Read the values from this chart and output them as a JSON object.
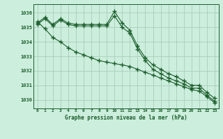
{
  "title": "Graphe pression niveau de la mer (hPa)",
  "background_color": "#cceedd",
  "grid_color": "#aaccbb",
  "line_color": "#1a5c2a",
  "x_labels": [
    "0",
    "1",
    "2",
    "3",
    "4",
    "5",
    "6",
    "7",
    "8",
    "9",
    "10",
    "11",
    "12",
    "13",
    "14",
    "15",
    "16",
    "17",
    "18",
    "19",
    "20",
    "21",
    "22",
    "23"
  ],
  "ylim": [
    1029.4,
    1036.6
  ],
  "yticks": [
    1030,
    1031,
    1032,
    1033,
    1034,
    1035,
    1036
  ],
  "series": [
    [
      1035.2,
      1035.6,
      1035.1,
      1035.5,
      1035.2,
      1035.1,
      1035.1,
      1035.1,
      1035.1,
      1035.1,
      1035.8,
      1035.0,
      1034.6,
      1033.5,
      1032.7,
      1032.1,
      1031.8,
      1031.5,
      1031.3,
      1031.1,
      1030.8,
      1030.8,
      1030.3,
      1029.9
    ],
    [
      1035.3,
      1035.7,
      1035.2,
      1035.6,
      1035.3,
      1035.2,
      1035.2,
      1035.2,
      1035.2,
      1035.2,
      1036.1,
      1035.3,
      1034.8,
      1033.7,
      1032.9,
      1032.4,
      1032.1,
      1031.8,
      1031.6,
      1031.3,
      1031.0,
      1031.0,
      1030.5,
      1030.1
    ],
    [
      1035.4,
      1034.9,
      1034.3,
      1034.0,
      1033.6,
      1033.3,
      1033.1,
      1032.9,
      1032.7,
      1032.6,
      1032.5,
      1032.4,
      1032.3,
      1032.1,
      1031.9,
      1031.7,
      1031.5,
      1031.3,
      1031.1,
      1030.9,
      1030.7,
      1030.6,
      1030.2,
      1029.8
    ]
  ]
}
